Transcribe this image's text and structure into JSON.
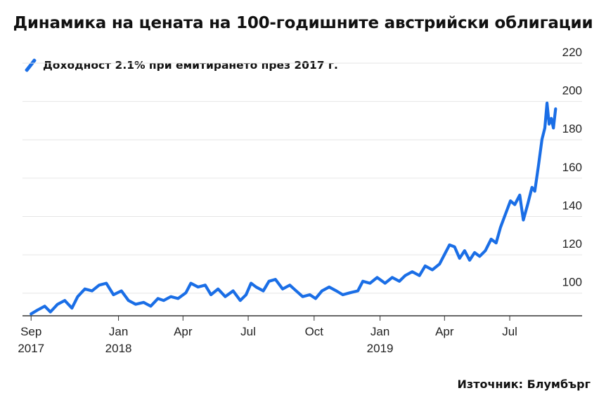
{
  "title": "Динамика на цената на 100-годишните австрийски облигации",
  "source": "Източник: Блумбърг",
  "colors": {
    "line": "#1a6ee6",
    "grid": "#e6e6e6",
    "axis": "#333333"
  },
  "chart_data": {
    "type": "line",
    "title": "Динамика на цената на 100-годишните австрийски облигации",
    "xlabel": "",
    "ylabel": "",
    "ylim": [
      90,
      220
    ],
    "xlim": [
      "2017-08-20",
      "2019-10-10"
    ],
    "yticks": [
      100,
      120,
      140,
      160,
      180,
      200,
      220
    ],
    "xticks": [
      {
        "date": "2017-09-01",
        "label": "Sep",
        "sub": "2017"
      },
      {
        "date": "2018-01-01",
        "label": "Jan",
        "sub": "2018"
      },
      {
        "date": "2018-04-01",
        "label": "Apr",
        "sub": ""
      },
      {
        "date": "2018-07-01",
        "label": "Jul",
        "sub": ""
      },
      {
        "date": "2018-10-01",
        "label": "Oct",
        "sub": ""
      },
      {
        "date": "2019-01-01",
        "label": "Jan",
        "sub": "2019"
      },
      {
        "date": "2019-04-01",
        "label": "Apr",
        "sub": ""
      },
      {
        "date": "2019-07-01",
        "label": "Jul",
        "sub": ""
      }
    ],
    "grid": true,
    "legend": "top-left",
    "series": [
      {
        "name": "Доходност 2.1% при емитирането през 2017 г.",
        "color": "#1a6ee6",
        "points": [
          [
            "2017-09-01",
            91
          ],
          [
            "2017-09-10",
            93
          ],
          [
            "2017-09-20",
            95
          ],
          [
            "2017-09-28",
            92
          ],
          [
            "2017-10-08",
            96
          ],
          [
            "2017-10-18",
            98
          ],
          [
            "2017-10-28",
            94
          ],
          [
            "2017-11-05",
            100
          ],
          [
            "2017-11-15",
            104
          ],
          [
            "2017-11-25",
            103
          ],
          [
            "2017-12-05",
            106
          ],
          [
            "2017-12-15",
            107
          ],
          [
            "2017-12-25",
            101
          ],
          [
            "2018-01-05",
            103
          ],
          [
            "2018-01-15",
            98
          ],
          [
            "2018-01-25",
            96
          ],
          [
            "2018-02-05",
            97
          ],
          [
            "2018-02-15",
            95
          ],
          [
            "2018-02-25",
            99
          ],
          [
            "2018-03-05",
            98
          ],
          [
            "2018-03-15",
            100
          ],
          [
            "2018-03-25",
            99
          ],
          [
            "2018-04-05",
            102
          ],
          [
            "2018-04-12",
            107
          ],
          [
            "2018-04-22",
            105
          ],
          [
            "2018-05-02",
            106
          ],
          [
            "2018-05-10",
            101
          ],
          [
            "2018-05-20",
            104
          ],
          [
            "2018-05-30",
            100
          ],
          [
            "2018-06-10",
            103
          ],
          [
            "2018-06-20",
            98
          ],
          [
            "2018-06-28",
            101
          ],
          [
            "2018-07-05",
            107
          ],
          [
            "2018-07-12",
            105
          ],
          [
            "2018-07-22",
            103
          ],
          [
            "2018-07-30",
            108
          ],
          [
            "2018-08-08",
            109
          ],
          [
            "2018-08-18",
            104
          ],
          [
            "2018-08-28",
            106
          ],
          [
            "2018-09-06",
            103
          ],
          [
            "2018-09-15",
            100
          ],
          [
            "2018-09-25",
            101
          ],
          [
            "2018-10-03",
            99
          ],
          [
            "2018-10-12",
            103
          ],
          [
            "2018-10-22",
            105
          ],
          [
            "2018-11-01",
            103
          ],
          [
            "2018-11-10",
            101
          ],
          [
            "2018-11-20",
            102
          ],
          [
            "2018-12-01",
            103
          ],
          [
            "2018-12-08",
            108
          ],
          [
            "2018-12-18",
            107
          ],
          [
            "2018-12-28",
            110
          ],
          [
            "2019-01-08",
            107
          ],
          [
            "2019-01-18",
            110
          ],
          [
            "2019-01-28",
            108
          ],
          [
            "2019-02-05",
            111
          ],
          [
            "2019-02-15",
            113
          ],
          [
            "2019-02-25",
            111
          ],
          [
            "2019-03-05",
            116
          ],
          [
            "2019-03-15",
            114
          ],
          [
            "2019-03-25",
            117
          ],
          [
            "2019-04-01",
            122
          ],
          [
            "2019-04-08",
            127
          ],
          [
            "2019-04-15",
            126
          ],
          [
            "2019-04-22",
            120
          ],
          [
            "2019-04-29",
            124
          ],
          [
            "2019-05-06",
            119
          ],
          [
            "2019-05-13",
            123
          ],
          [
            "2019-05-20",
            121
          ],
          [
            "2019-05-28",
            124
          ],
          [
            "2019-06-05",
            130
          ],
          [
            "2019-06-12",
            128
          ],
          [
            "2019-06-18",
            136
          ],
          [
            "2019-06-25",
            143
          ],
          [
            "2019-07-02",
            150
          ],
          [
            "2019-07-08",
            148
          ],
          [
            "2019-07-15",
            153
          ],
          [
            "2019-07-20",
            140
          ],
          [
            "2019-07-26",
            148
          ],
          [
            "2019-08-01",
            157
          ],
          [
            "2019-08-05",
            155
          ],
          [
            "2019-08-10",
            168
          ],
          [
            "2019-08-15",
            182
          ],
          [
            "2019-08-19",
            188
          ],
          [
            "2019-08-22",
            201
          ],
          [
            "2019-08-25",
            190
          ],
          [
            "2019-08-28",
            193
          ],
          [
            "2019-08-31",
            188
          ],
          [
            "2019-09-03",
            198
          ]
        ]
      }
    ]
  }
}
